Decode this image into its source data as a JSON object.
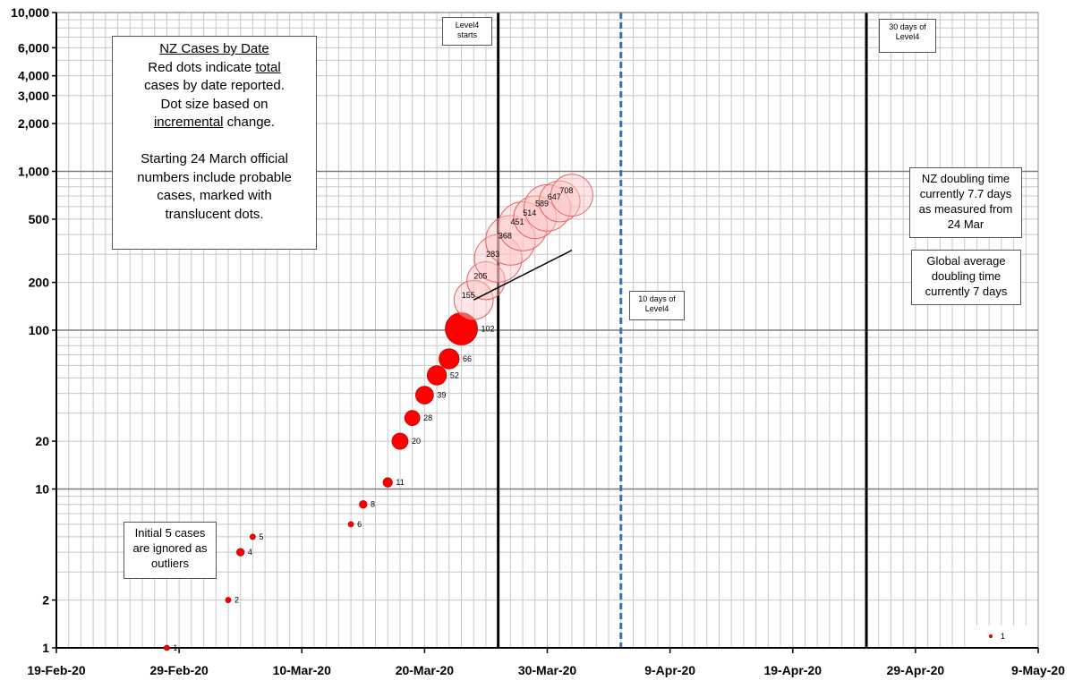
{
  "chart_data": {
    "type": "scatter",
    "title": "",
    "xlabel": "",
    "ylabel": "",
    "x_ticks": [
      "19-Feb-20",
      "29-Feb-20",
      "10-Mar-20",
      "20-Mar-20",
      "30-Mar-20",
      "9-Apr-20",
      "19-Apr-20",
      "29-Apr-20",
      "9-May-20"
    ],
    "y_ticks": [
      "1",
      "2",
      "10",
      "20",
      "100",
      "200",
      "500",
      "1,000",
      "2,000",
      "3,000",
      "4,000",
      "6,000",
      "10,000"
    ],
    "y_scale": "log",
    "ylim": [
      1,
      10000
    ],
    "xlim": [
      "2020-02-19",
      "2020-05-09"
    ],
    "grid": true,
    "legend": "bottom-right",
    "series": [
      {
        "values": [
          {
            "date": "2020-02-28",
            "cases": 1,
            "label": "1",
            "incremental": 1,
            "probable": false
          },
          {
            "date": "2020-03-04",
            "cases": 2,
            "label": "2",
            "incremental": 1,
            "probable": false
          },
          {
            "date": "2020-03-05",
            "cases": 4,
            "label": "4",
            "incremental": 2,
            "probable": false
          },
          {
            "date": "2020-03-06",
            "cases": 5,
            "label": "5",
            "incremental": 1,
            "probable": false
          },
          {
            "date": "2020-03-14",
            "cases": 6,
            "label": "6",
            "incremental": 1,
            "probable": false
          },
          {
            "date": "2020-03-15",
            "cases": 8,
            "label": "8",
            "incremental": 2,
            "probable": false
          },
          {
            "date": "2020-03-17",
            "cases": 11,
            "label": "11",
            "incremental": 3,
            "probable": false
          },
          {
            "date": "2020-03-18",
            "cases": 20,
            "label": "20",
            "incremental": 9,
            "probable": false
          },
          {
            "date": "2020-03-19",
            "cases": 28,
            "label": "28",
            "incremental": 8,
            "probable": false
          },
          {
            "date": "2020-03-20",
            "cases": 39,
            "label": "39",
            "incremental": 11,
            "probable": false
          },
          {
            "date": "2020-03-21",
            "cases": 52,
            "label": "52",
            "incremental": 13,
            "probable": false
          },
          {
            "date": "2020-03-22",
            "cases": 66,
            "label": "66",
            "incremental": 14,
            "probable": false
          },
          {
            "date": "2020-03-23",
            "cases": 102,
            "label": "102",
            "incremental": 36,
            "probable": false
          },
          {
            "date": "2020-03-24",
            "cases": 155,
            "label": "155",
            "incremental": 53,
            "probable": true
          },
          {
            "date": "2020-03-25",
            "cases": 205,
            "label": "205",
            "incremental": 50,
            "probable": true
          },
          {
            "date": "2020-03-26",
            "cases": 283,
            "label": "283",
            "incremental": 78,
            "probable": true
          },
          {
            "date": "2020-03-27",
            "cases": 368,
            "label": "368",
            "incremental": 85,
            "probable": true
          },
          {
            "date": "2020-03-28",
            "cases": 451,
            "label": "451",
            "incremental": 83,
            "probable": true
          },
          {
            "date": "2020-03-29",
            "cases": 514,
            "label": "514",
            "incremental": 63,
            "probable": true
          },
          {
            "date": "2020-03-30",
            "cases": 589,
            "label": "589",
            "incremental": 75,
            "probable": true
          },
          {
            "date": "2020-03-31",
            "cases": 647,
            "label": "647",
            "incremental": 58,
            "probable": true
          },
          {
            "date": "2020-04-01",
            "cases": 708,
            "label": "708",
            "incremental": 61,
            "probable": true
          }
        ]
      }
    ],
    "trend_line": {
      "from": "2020-03-24",
      "to": "2020-04-01",
      "start": 155,
      "doubling_days": 7.7
    },
    "vertical_lines": [
      {
        "date": "2020-03-26",
        "style": "solid",
        "color": "#000000"
      },
      {
        "date": "2020-04-05",
        "style": "dashed",
        "color": "#3d6fb0"
      },
      {
        "date": "2020-04-25",
        "style": "solid",
        "color": "#000000"
      }
    ],
    "legend_entry": "1",
    "annotations": {
      "main_box": {
        "line1": "NZ Cases by Date",
        "line2_pre": "Red dots indicate ",
        "line2_u": "total",
        "line3": "cases by date reported.",
        "line4": "Dot size based on",
        "line5_u": "incremental",
        "line5_post": " change.",
        "line6": "Starting 24 March official",
        "line7": "numbers include probable",
        "line8": "cases, marked with",
        "line9": "translucent dots."
      },
      "outliers_box": {
        "line1": "Initial 5 cases",
        "line2": "are ignored  as",
        "line3": "outliers"
      },
      "level4_starts": {
        "line1": "Level4",
        "line2": "starts"
      },
      "ten_days": {
        "line1": "10 days of",
        "line2": "Level4"
      },
      "thirty_days": {
        "line1": "30 days of",
        "line2": "Level4"
      },
      "nz_doubling": {
        "line1": "NZ doubling time",
        "line2": "currently 7.7 days",
        "line3": "as measured from",
        "line4": "24 Mar"
      },
      "global_doubling": {
        "line1": "Global average",
        "line2": "doubling time",
        "line3": "currently 7 days"
      }
    },
    "colors": {
      "dot": "#ff0000",
      "dot_edge": "#c00000",
      "probable_fill": "#ffc6c6",
      "probable_edge": "#e86060",
      "grid": "#c8c8c8",
      "axis": "#000000"
    }
  }
}
